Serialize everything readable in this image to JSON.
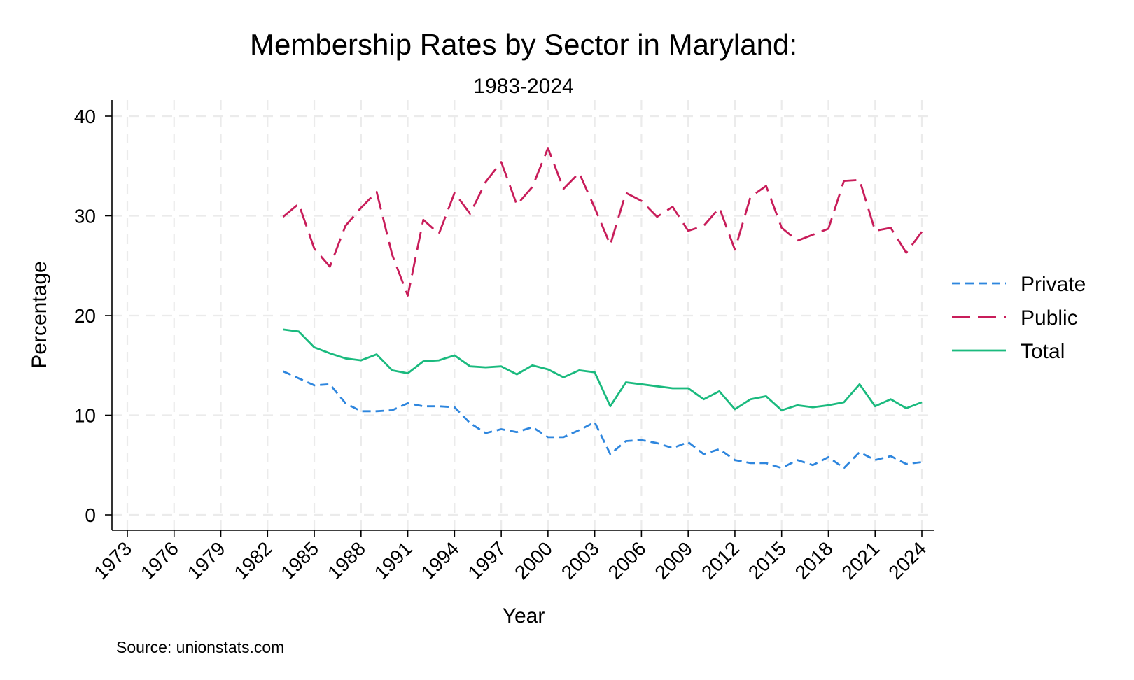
{
  "chart_data": {
    "type": "line",
    "title": "Membership Rates by Sector in Maryland:",
    "subtitle": "1983-2024",
    "xlabel": "Year",
    "ylabel": "Percentage",
    "xlim": [
      1972,
      2025
    ],
    "ylim": [
      0,
      40
    ],
    "x_ticks": [
      1973,
      1976,
      1979,
      1982,
      1985,
      1988,
      1991,
      1994,
      1997,
      2000,
      2003,
      2006,
      2009,
      2012,
      2015,
      2018,
      2021,
      2024
    ],
    "y_ticks": [
      0,
      10,
      20,
      30,
      40
    ],
    "grid": true,
    "legend_position": "right",
    "note": "Source: unionstats.com",
    "x": [
      1983,
      1984,
      1985,
      1986,
      1987,
      1988,
      1989,
      1990,
      1991,
      1992,
      1993,
      1994,
      1995,
      1996,
      1997,
      1998,
      1999,
      2000,
      2001,
      2002,
      2003,
      2004,
      2005,
      2006,
      2007,
      2008,
      2009,
      2010,
      2011,
      2012,
      2013,
      2014,
      2015,
      2016,
      2017,
      2018,
      2019,
      2020,
      2021,
      2022,
      2023,
      2024
    ],
    "series": [
      {
        "name": "Private",
        "color": "#2e86de",
        "dash": "short",
        "values": [
          14.4,
          13.7,
          13.0,
          13.1,
          11.2,
          10.4,
          10.4,
          10.5,
          11.2,
          10.9,
          10.9,
          10.8,
          9.2,
          8.2,
          8.6,
          8.3,
          8.8,
          7.8,
          7.8,
          8.5,
          9.3,
          6.1,
          7.4,
          7.5,
          7.2,
          6.7,
          7.3,
          6.1,
          6.6,
          5.5,
          5.2,
          5.2,
          4.7,
          5.5,
          5.0,
          5.8,
          4.7,
          6.3,
          5.5,
          5.9,
          5.1,
          5.3
        ]
      },
      {
        "name": "Public",
        "color": "#c81d5a",
        "dash": "long",
        "values": [
          29.9,
          31.2,
          26.7,
          24.9,
          29.0,
          30.8,
          32.4,
          26.1,
          22.0,
          29.6,
          28.2,
          32.3,
          30.2,
          33.4,
          35.4,
          31.1,
          32.9,
          36.8,
          32.7,
          34.3,
          30.8,
          27.1,
          32.3,
          31.5,
          29.9,
          30.9,
          28.5,
          29.0,
          30.8,
          26.6,
          31.9,
          33.0,
          28.8,
          27.5,
          28.1,
          28.7,
          33.5,
          33.6,
          28.5,
          28.8,
          26.3,
          28.4
        ]
      },
      {
        "name": "Total",
        "color": "#1aba7e",
        "dash": "solid",
        "values": [
          18.6,
          18.4,
          16.8,
          16.2,
          15.7,
          15.5,
          16.1,
          14.5,
          14.2,
          15.4,
          15.5,
          16.0,
          14.9,
          14.8,
          14.9,
          14.1,
          15.0,
          14.6,
          13.8,
          14.5,
          14.3,
          10.9,
          13.3,
          13.1,
          12.9,
          12.7,
          12.7,
          11.6,
          12.4,
          10.6,
          11.6,
          11.9,
          10.5,
          11.0,
          10.8,
          11.0,
          11.3,
          13.1,
          10.9,
          11.6,
          10.7,
          11.3
        ]
      }
    ]
  }
}
